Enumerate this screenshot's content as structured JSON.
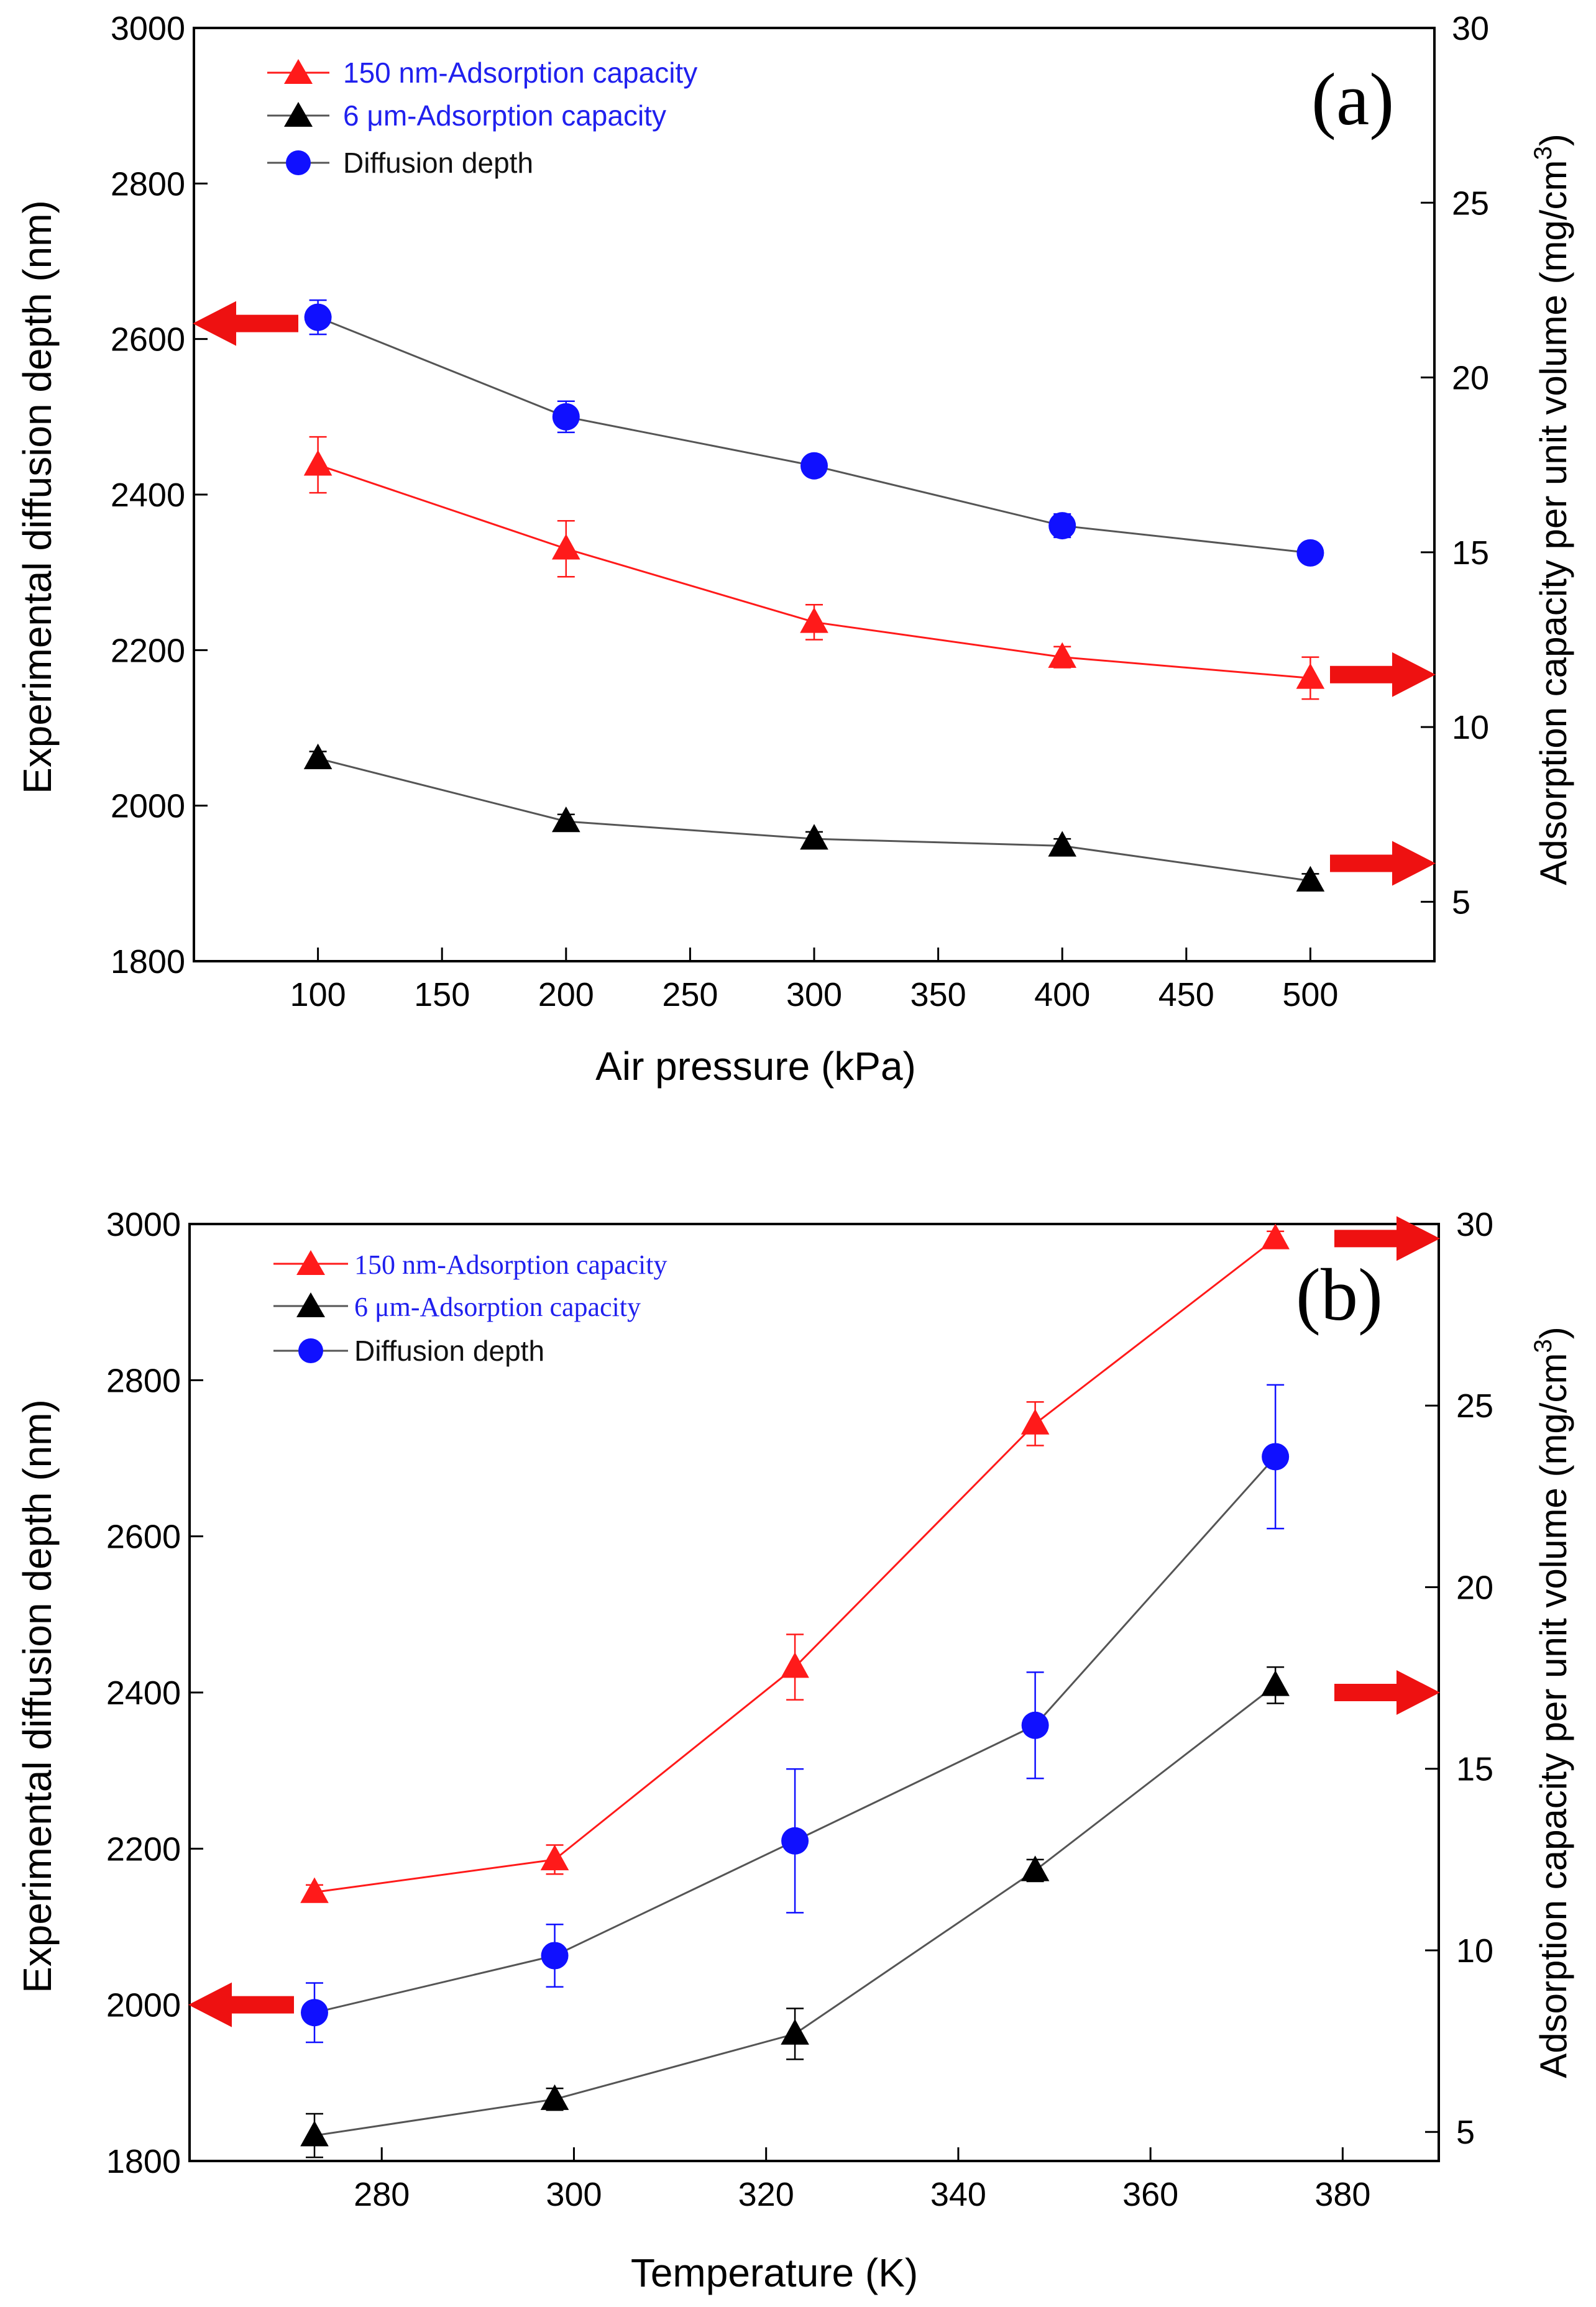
{
  "colors": {
    "red": "#ff1a1a",
    "black": "#000000",
    "blue": "#1010ff",
    "line_gray": "#555555",
    "legend_text_blue": "#2020ee",
    "arrow_red": "#ee1111"
  },
  "chart_data": [
    {
      "id": "a",
      "type": "line",
      "panel_label": "(a)",
      "xlabel": "Air pressure (kPa)",
      "ylabel_left": "Experimental  diffusion depth (nm)",
      "ylabel_right_prefix": "Adsorption capacity per unit volume (mg/cm",
      "ylabel_right_sup": "3",
      "ylabel_right_suffix": ")",
      "xlim": [
        50,
        550
      ],
      "ylim_left": [
        1800,
        3000
      ],
      "ylim_right": [
        3.3,
        30
      ],
      "x_ticks": [
        100,
        150,
        200,
        250,
        300,
        350,
        400,
        450,
        500
      ],
      "y_left_ticks": [
        1800,
        2000,
        2200,
        2400,
        2600,
        2800,
        3000
      ],
      "y_right_ticks": [
        5,
        10,
        15,
        20,
        25,
        30
      ],
      "legend": [
        {
          "label": "150 nm-Adsorption capacity",
          "marker": "triangle",
          "color": "red"
        },
        {
          "label": "6 μm-Adsorption capacity",
          "marker": "triangle",
          "color": "black"
        },
        {
          "label": "Diffusion depth",
          "marker": "circle",
          "color": "blue"
        }
      ],
      "series": [
        {
          "name": "150 nm-Adsorption capacity",
          "axis": "right",
          "x": [
            100,
            200,
            300,
            400,
            500
          ],
          "y": [
            17.5,
            15.1,
            13.0,
            12.0,
            11.4
          ],
          "err": [
            0.8,
            0.8,
            0.5,
            0.3,
            0.6
          ]
        },
        {
          "name": "6 μm-Adsorption capacity",
          "axis": "right",
          "x": [
            100,
            200,
            300,
            400,
            500
          ],
          "y": [
            9.1,
            7.3,
            6.8,
            6.6,
            5.6
          ],
          "err": [
            0.2,
            0.2,
            0.2,
            0.2,
            0.2
          ]
        },
        {
          "name": "Diffusion depth",
          "axis": "left",
          "x": [
            100,
            200,
            300,
            400,
            500
          ],
          "y": [
            2628,
            2500,
            2437,
            2360,
            2325
          ],
          "err": [
            22,
            20,
            10,
            15,
            12
          ]
        }
      ],
      "arrows": [
        {
          "direction": "left",
          "axis": "left",
          "value": 2620
        },
        {
          "direction": "right",
          "axis": "right",
          "value": 11.5
        },
        {
          "direction": "right",
          "axis": "right",
          "value": 6.1
        }
      ]
    },
    {
      "id": "b",
      "type": "line",
      "panel_label": "(b)",
      "xlabel": "Temperature (K)",
      "ylabel_left": "Experimental  diffusion depth (nm)",
      "ylabel_right_prefix": "Adsorption capacity per unit volume (mg/cm",
      "ylabel_right_sup": "3",
      "ylabel_right_suffix": ")",
      "xlim": [
        260,
        390
      ],
      "ylim_left": [
        1800,
        3000
      ],
      "ylim_right": [
        4.2,
        30
      ],
      "x_ticks": [
        280,
        300,
        320,
        340,
        360,
        380
      ],
      "y_left_ticks": [
        1800,
        2000,
        2200,
        2400,
        2600,
        2800,
        3000
      ],
      "y_right_ticks": [
        5,
        10,
        15,
        20,
        25,
        30
      ],
      "legend": [
        {
          "label": "150 nm-Adsorption capacity",
          "marker": "triangle",
          "color": "red"
        },
        {
          "label": "6 μm-Adsorption capacity",
          "marker": "triangle",
          "color": "black"
        },
        {
          "label": "Diffusion depth",
          "marker": "circle",
          "color": "blue"
        }
      ],
      "series": [
        {
          "name": "150 nm-Adsorption capacity",
          "axis": "right",
          "x": [
            273,
            298,
            323,
            348,
            373
          ],
          "y": [
            11.6,
            12.5,
            17.8,
            24.5,
            29.6
          ],
          "err": [
            0.2,
            0.4,
            0.9,
            0.6,
            0.2
          ]
        },
        {
          "name": "6 μm-Adsorption capacity",
          "axis": "right",
          "x": [
            273,
            298,
            323,
            348,
            373
          ],
          "y": [
            4.9,
            5.9,
            7.7,
            12.2,
            17.3
          ],
          "err": [
            0.6,
            0.3,
            0.7,
            0.3,
            0.5
          ]
        },
        {
          "name": "Diffusion depth",
          "axis": "left",
          "x": [
            273,
            298,
            323,
            348,
            373
          ],
          "y": [
            1990,
            2063,
            2210,
            2358,
            2702
          ],
          "err": [
            38,
            40,
            92,
            68,
            92
          ]
        }
      ],
      "arrows": [
        {
          "direction": "left",
          "axis": "left",
          "value": 2000
        },
        {
          "direction": "right",
          "axis": "right",
          "value": 29.6
        },
        {
          "direction": "right",
          "axis": "right",
          "value": 17.1
        }
      ]
    }
  ]
}
